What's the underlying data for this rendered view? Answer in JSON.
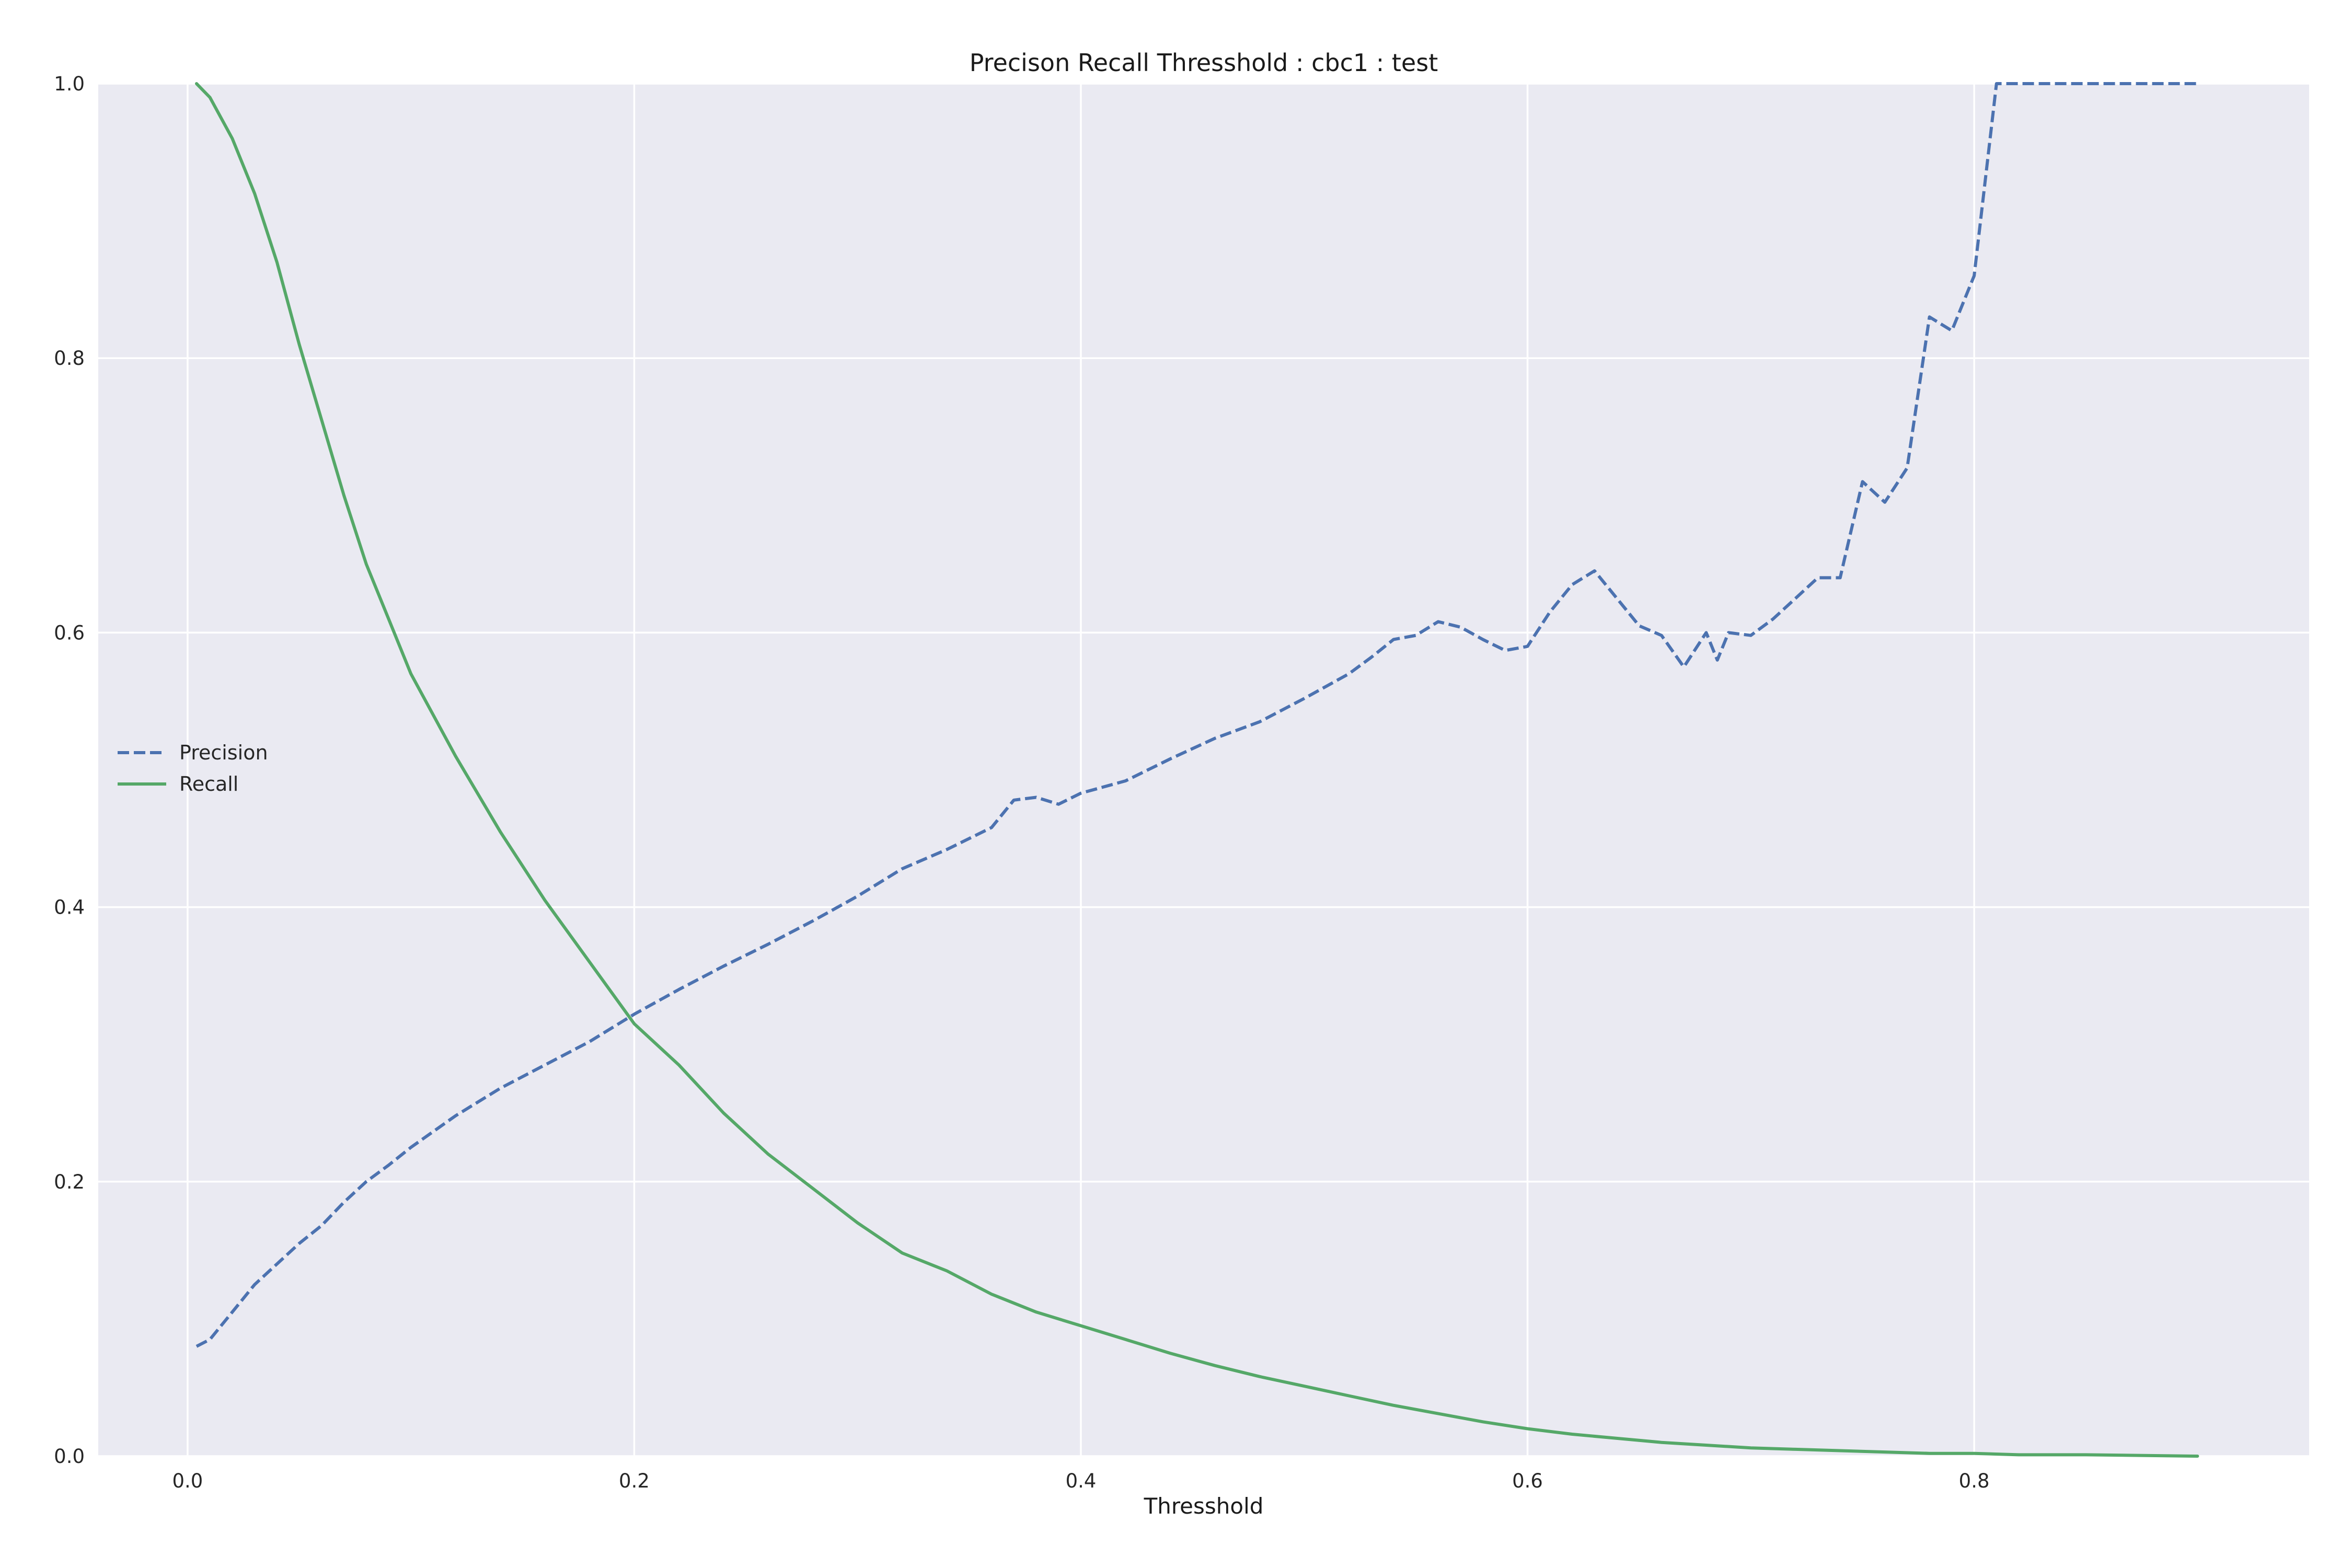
{
  "chart_data": {
    "type": "line",
    "title": "Precison Recall Thresshold : cbc1 : test",
    "xlabel": "Thresshold",
    "ylabel": "",
    "xlim": [
      -0.04,
      0.95
    ],
    "ylim": [
      0.0,
      1.0
    ],
    "xticks": [
      "0.0",
      "0.2",
      "0.4",
      "0.6",
      "0.8"
    ],
    "yticks": [
      "0.0",
      "0.2",
      "0.4",
      "0.6",
      "0.8",
      "1.0"
    ],
    "grid": true,
    "legend_position": "center-left",
    "series": [
      {
        "name": "Precision",
        "color": "#4c72b0",
        "dash": "dashed",
        "x": [
          0.004,
          0.01,
          0.02,
          0.03,
          0.04,
          0.05,
          0.06,
          0.07,
          0.08,
          0.09,
          0.1,
          0.12,
          0.14,
          0.16,
          0.18,
          0.2,
          0.22,
          0.24,
          0.26,
          0.28,
          0.3,
          0.32,
          0.34,
          0.36,
          0.37,
          0.38,
          0.39,
          0.4,
          0.42,
          0.44,
          0.46,
          0.48,
          0.5,
          0.52,
          0.53,
          0.54,
          0.55,
          0.56,
          0.57,
          0.58,
          0.59,
          0.6,
          0.61,
          0.62,
          0.63,
          0.64,
          0.65,
          0.66,
          0.67,
          0.68,
          0.685,
          0.69,
          0.7,
          0.71,
          0.72,
          0.73,
          0.74,
          0.75,
          0.76,
          0.77,
          0.78,
          0.79,
          0.8,
          0.81,
          0.85,
          0.9
        ],
        "y": [
          0.08,
          0.085,
          0.105,
          0.125,
          0.14,
          0.155,
          0.168,
          0.185,
          0.2,
          0.212,
          0.225,
          0.248,
          0.268,
          0.285,
          0.302,
          0.322,
          0.34,
          0.357,
          0.373,
          0.39,
          0.408,
          0.428,
          0.442,
          0.458,
          0.478,
          0.48,
          0.475,
          0.483,
          0.492,
          0.508,
          0.523,
          0.535,
          0.552,
          0.57,
          0.582,
          0.595,
          0.598,
          0.608,
          0.604,
          0.595,
          0.587,
          0.59,
          0.615,
          0.635,
          0.645,
          0.625,
          0.605,
          0.598,
          0.575,
          0.6,
          0.58,
          0.6,
          0.598,
          0.61,
          0.625,
          0.64,
          0.64,
          0.71,
          0.695,
          0.72,
          0.83,
          0.82,
          0.86,
          1.0,
          1.0,
          1.0
        ]
      },
      {
        "name": "Recall",
        "color": "#55a868",
        "dash": "solid",
        "x": [
          0.004,
          0.01,
          0.02,
          0.03,
          0.04,
          0.05,
          0.06,
          0.07,
          0.08,
          0.09,
          0.1,
          0.12,
          0.14,
          0.16,
          0.18,
          0.2,
          0.22,
          0.24,
          0.26,
          0.28,
          0.3,
          0.32,
          0.34,
          0.36,
          0.38,
          0.4,
          0.42,
          0.44,
          0.46,
          0.48,
          0.5,
          0.52,
          0.54,
          0.56,
          0.58,
          0.6,
          0.62,
          0.64,
          0.66,
          0.68,
          0.7,
          0.72,
          0.74,
          0.76,
          0.78,
          0.8,
          0.82,
          0.85,
          0.9
        ],
        "y": [
          1.0,
          0.99,
          0.96,
          0.92,
          0.87,
          0.81,
          0.755,
          0.7,
          0.65,
          0.61,
          0.57,
          0.51,
          0.455,
          0.405,
          0.36,
          0.315,
          0.285,
          0.25,
          0.22,
          0.195,
          0.17,
          0.148,
          0.135,
          0.118,
          0.105,
          0.095,
          0.085,
          0.075,
          0.066,
          0.058,
          0.051,
          0.044,
          0.037,
          0.031,
          0.025,
          0.02,
          0.016,
          0.013,
          0.01,
          0.008,
          0.006,
          0.005,
          0.004,
          0.003,
          0.002,
          0.002,
          0.001,
          0.001,
          0.0
        ]
      }
    ]
  }
}
